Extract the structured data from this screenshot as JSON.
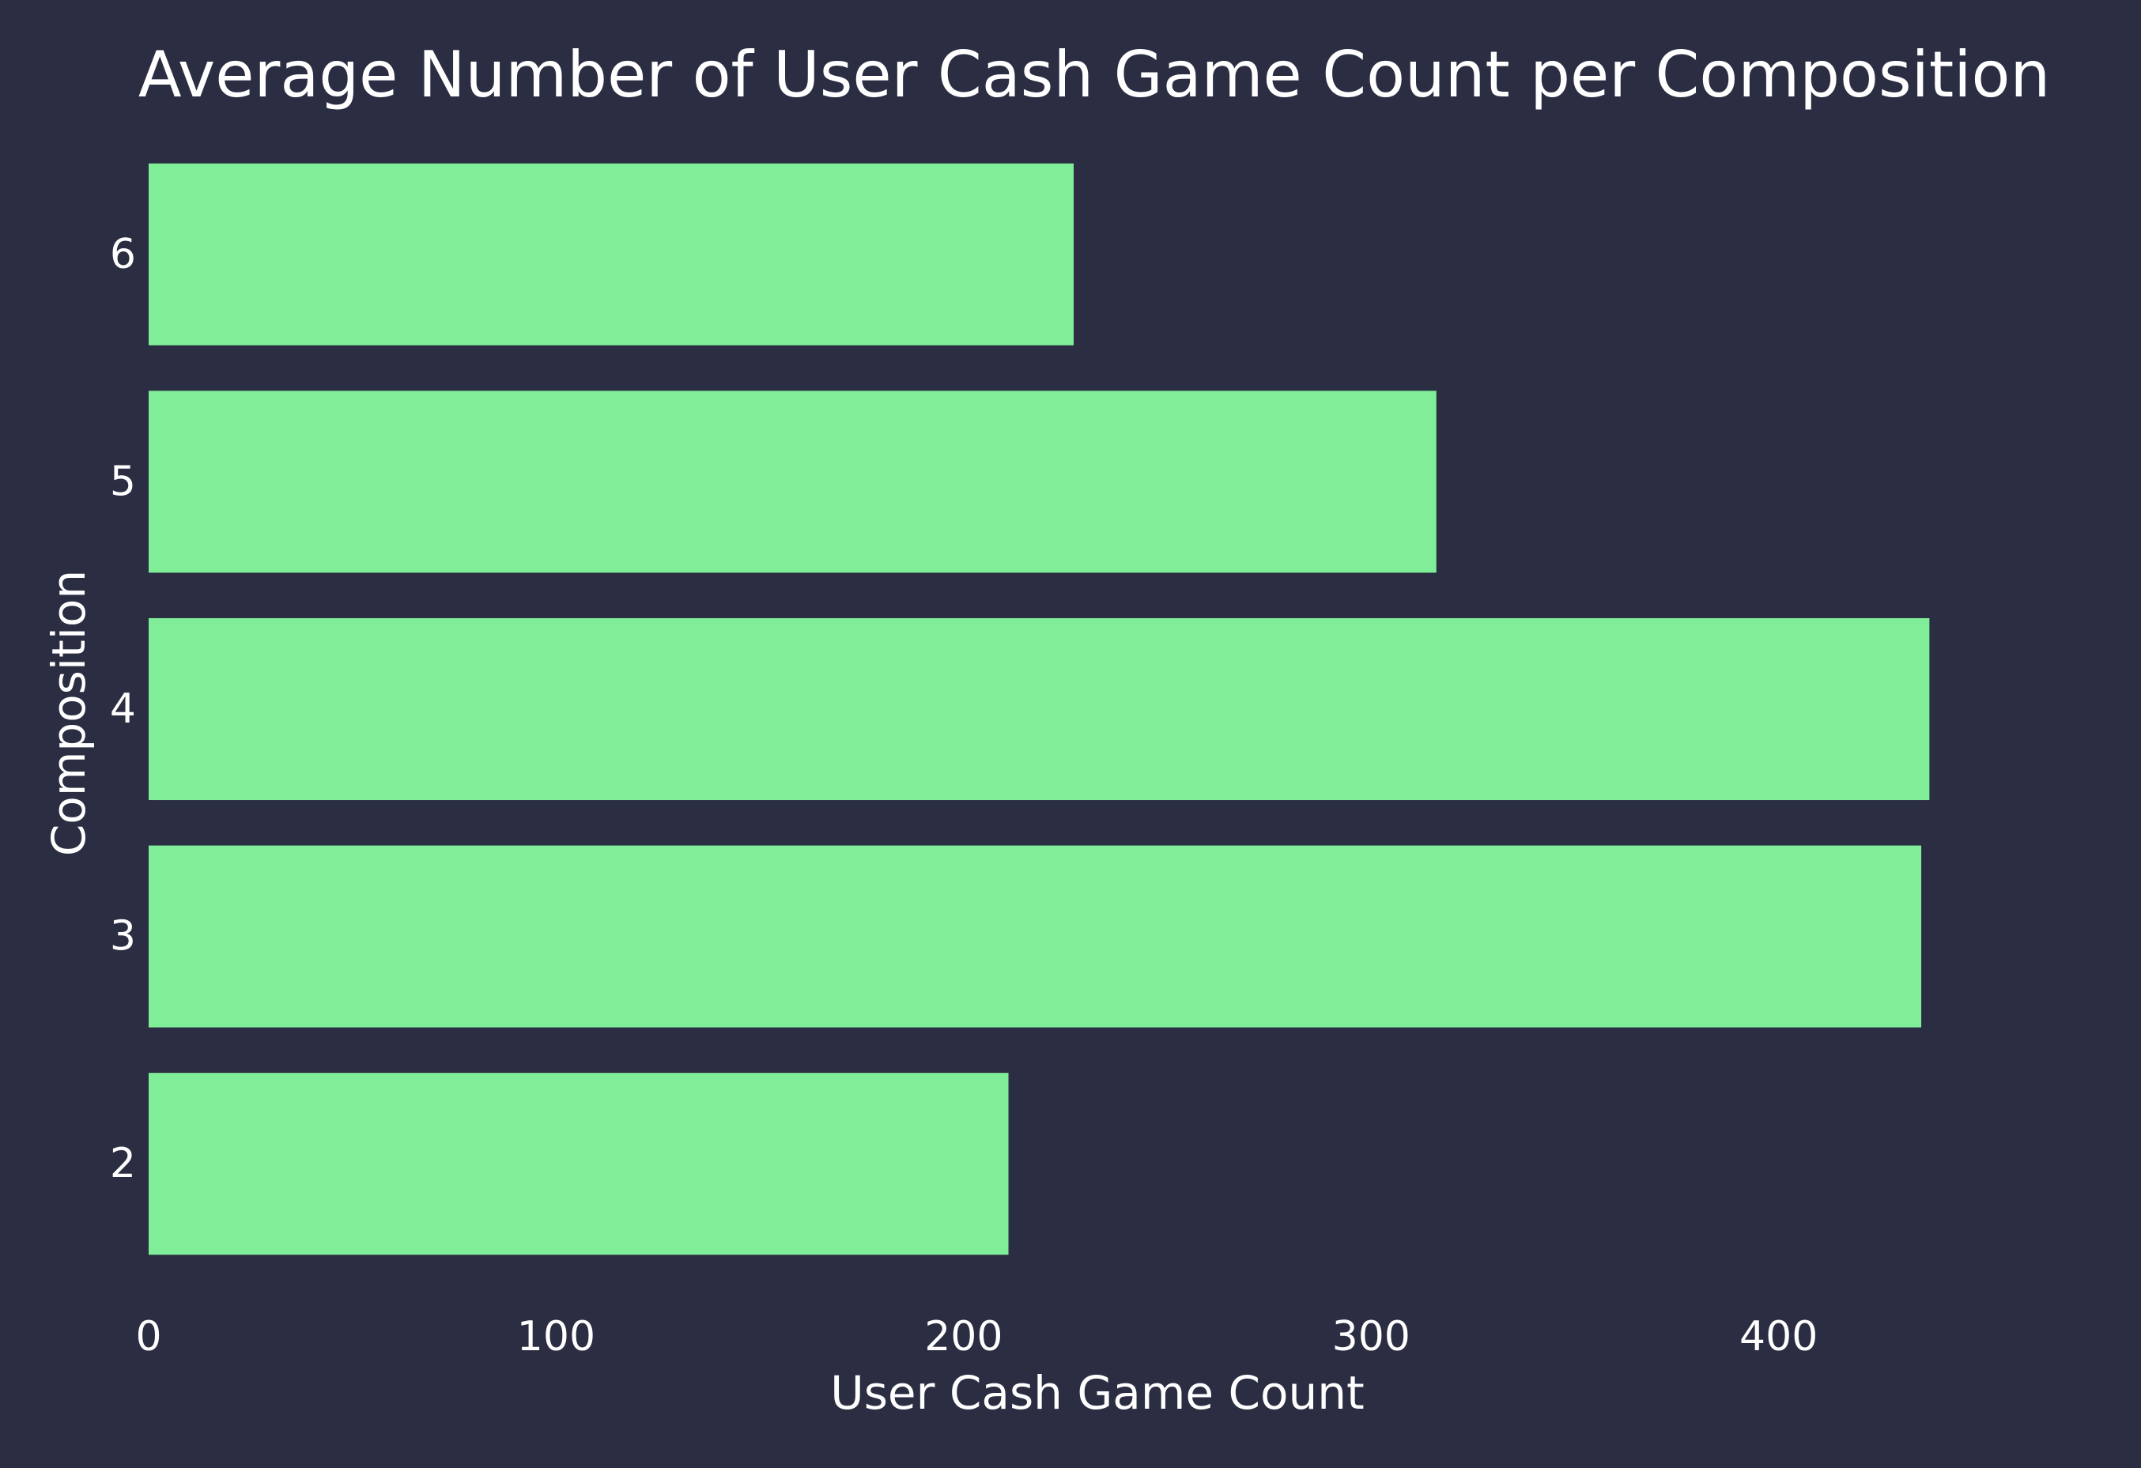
{
  "chart_data": {
    "type": "bar",
    "orientation": "horizontal",
    "title": "Average Number of User Cash Game Count per Composition",
    "xlabel": "User Cash Game Count",
    "ylabel": "Composition",
    "categories": [
      "2",
      "3",
      "4",
      "5",
      "6"
    ],
    "values": [
      211,
      435,
      437,
      316,
      227
    ],
    "xlim": [
      0,
      480
    ],
    "xticks": [
      0,
      100,
      200,
      300,
      400
    ],
    "grid": false,
    "legend": "none",
    "colors": {
      "background": "#2b2d42",
      "bar": "#80ee98",
      "text": "#ffffff"
    }
  }
}
